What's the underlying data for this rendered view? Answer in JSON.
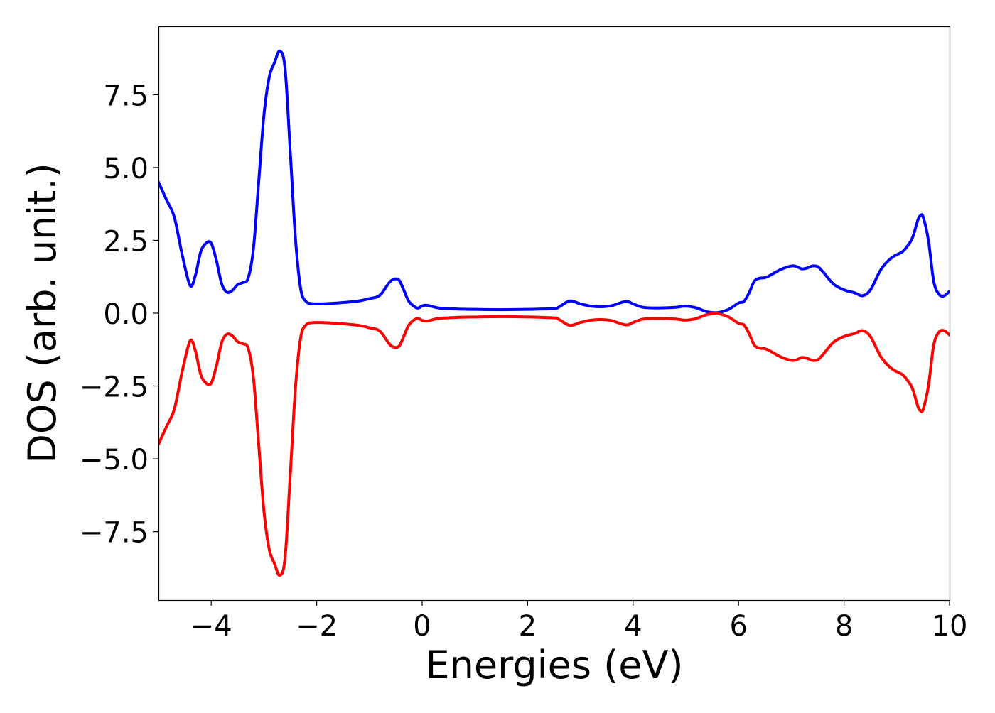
{
  "chart_data": {
    "type": "line",
    "title": "",
    "xlabel": "Energies (eV)",
    "ylabel": "DOS (arb. unit.)",
    "xlim": [
      -5,
      10
    ],
    "ylim": [
      -9.85,
      9.85
    ],
    "xticks": [
      -4,
      -2,
      0,
      2,
      4,
      6,
      8,
      10
    ],
    "xtick_labels": [
      "−4",
      "−2",
      "0",
      "2",
      "4",
      "6",
      "8",
      "10"
    ],
    "yticks": [
      7.5,
      5.0,
      2.5,
      0.0,
      -2.5,
      -5.0,
      -7.5
    ],
    "ytick_labels": [
      "7.5",
      "5.0",
      "2.5",
      "0.0",
      "−2.5",
      "−5.0",
      "−7.5"
    ],
    "grid": false,
    "legend": false,
    "series": [
      {
        "color": "#0000ff",
        "x": [
          -5.0,
          -4.85,
          -4.7,
          -4.55,
          -4.4,
          -4.3,
          -4.2,
          -4.1,
          -4.0,
          -3.9,
          -3.8,
          -3.7,
          -3.6,
          -3.5,
          -3.4,
          -3.3,
          -3.2,
          -3.1,
          -3.0,
          -2.9,
          -2.8,
          -2.7,
          -2.6,
          -2.5,
          -2.4,
          -2.3,
          -2.2,
          -2.1,
          -2.0,
          -1.9,
          -1.8,
          -1.6,
          -1.4,
          -1.2,
          -1.0,
          -0.8,
          -0.6,
          -0.45,
          -0.35,
          -0.25,
          -0.1,
          0.0,
          0.1,
          0.3,
          0.5,
          0.7,
          1.0,
          1.5,
          2.0,
          2.5,
          2.6,
          2.8,
          3.0,
          3.2,
          3.4,
          3.6,
          3.8,
          3.9,
          4.0,
          4.2,
          4.5,
          4.8,
          5.0,
          5.2,
          5.4,
          5.6,
          5.8,
          6.0,
          6.1,
          6.2,
          6.3,
          6.4,
          6.5,
          6.6,
          6.8,
          7.0,
          7.1,
          7.2,
          7.3,
          7.4,
          7.5,
          7.6,
          7.8,
          8.0,
          8.2,
          8.35,
          8.5,
          8.7,
          8.9,
          9.1,
          9.2,
          9.3,
          9.4,
          9.45,
          9.5,
          9.6,
          9.7,
          9.8,
          9.9,
          10.0
        ],
        "y": [
          4.5,
          3.9,
          3.3,
          2.0,
          0.95,
          1.3,
          2.1,
          2.4,
          2.4,
          1.8,
          1.0,
          0.72,
          0.78,
          0.98,
          1.05,
          1.2,
          2.2,
          4.5,
          6.8,
          8.1,
          8.6,
          9.0,
          8.4,
          5.5,
          2.5,
          0.8,
          0.4,
          0.33,
          0.32,
          0.32,
          0.33,
          0.35,
          0.38,
          0.42,
          0.5,
          0.62,
          1.1,
          1.15,
          0.8,
          0.4,
          0.18,
          0.25,
          0.27,
          0.18,
          0.16,
          0.14,
          0.13,
          0.12,
          0.13,
          0.16,
          0.22,
          0.42,
          0.32,
          0.24,
          0.22,
          0.26,
          0.38,
          0.4,
          0.32,
          0.2,
          0.18,
          0.2,
          0.24,
          0.18,
          0.05,
          0.02,
          0.12,
          0.35,
          0.4,
          0.7,
          1.1,
          1.2,
          1.22,
          1.3,
          1.5,
          1.62,
          1.6,
          1.52,
          1.55,
          1.62,
          1.6,
          1.42,
          1.0,
          0.8,
          0.7,
          0.6,
          0.8,
          1.5,
          1.9,
          2.1,
          2.3,
          2.6,
          3.2,
          3.35,
          3.3,
          2.5,
          1.1,
          0.65,
          0.6,
          0.75
        ]
      },
      {
        "color": "#ff0000",
        "x": [
          -5.0,
          -4.85,
          -4.7,
          -4.55,
          -4.4,
          -4.3,
          -4.2,
          -4.1,
          -4.0,
          -3.9,
          -3.8,
          -3.7,
          -3.6,
          -3.5,
          -3.4,
          -3.3,
          -3.2,
          -3.1,
          -3.0,
          -2.9,
          -2.8,
          -2.7,
          -2.6,
          -2.5,
          -2.4,
          -2.3,
          -2.2,
          -2.1,
          -2.0,
          -1.9,
          -1.8,
          -1.6,
          -1.4,
          -1.2,
          -1.0,
          -0.8,
          -0.6,
          -0.45,
          -0.35,
          -0.25,
          -0.1,
          0.0,
          0.1,
          0.3,
          0.5,
          0.7,
          1.0,
          1.5,
          2.0,
          2.5,
          2.6,
          2.8,
          3.0,
          3.2,
          3.4,
          3.6,
          3.8,
          3.9,
          4.0,
          4.2,
          4.5,
          4.8,
          5.0,
          5.2,
          5.4,
          5.6,
          5.8,
          6.0,
          6.1,
          6.2,
          6.3,
          6.4,
          6.5,
          6.6,
          6.8,
          7.0,
          7.1,
          7.2,
          7.3,
          7.4,
          7.5,
          7.6,
          7.8,
          8.0,
          8.2,
          8.35,
          8.5,
          8.7,
          8.9,
          9.1,
          9.2,
          9.3,
          9.4,
          9.45,
          9.5,
          9.6,
          9.7,
          9.8,
          9.9,
          10.0
        ],
        "y": [
          -4.5,
          -3.9,
          -3.3,
          -2.0,
          -0.95,
          -1.3,
          -2.1,
          -2.4,
          -2.4,
          -1.8,
          -1.0,
          -0.72,
          -0.78,
          -0.98,
          -1.05,
          -1.2,
          -2.2,
          -4.5,
          -6.8,
          -8.1,
          -8.6,
          -9.0,
          -8.4,
          -5.5,
          -2.5,
          -0.8,
          -0.4,
          -0.33,
          -0.32,
          -0.32,
          -0.33,
          -0.35,
          -0.38,
          -0.42,
          -0.5,
          -0.62,
          -1.1,
          -1.15,
          -0.8,
          -0.4,
          -0.18,
          -0.25,
          -0.27,
          -0.18,
          -0.16,
          -0.14,
          -0.13,
          -0.12,
          -0.13,
          -0.16,
          -0.22,
          -0.42,
          -0.32,
          -0.24,
          -0.22,
          -0.26,
          -0.38,
          -0.4,
          -0.32,
          -0.2,
          -0.18,
          -0.2,
          -0.24,
          -0.18,
          -0.05,
          -0.02,
          -0.12,
          -0.35,
          -0.4,
          -0.7,
          -1.1,
          -1.2,
          -1.22,
          -1.3,
          -1.5,
          -1.62,
          -1.6,
          -1.52,
          -1.55,
          -1.62,
          -1.6,
          -1.42,
          -1.0,
          -0.8,
          -0.7,
          -0.6,
          -0.8,
          -1.5,
          -1.9,
          -2.1,
          -2.3,
          -2.6,
          -3.2,
          -3.35,
          -3.3,
          -2.5,
          -1.1,
          -0.65,
          -0.6,
          -0.75
        ]
      }
    ]
  }
}
